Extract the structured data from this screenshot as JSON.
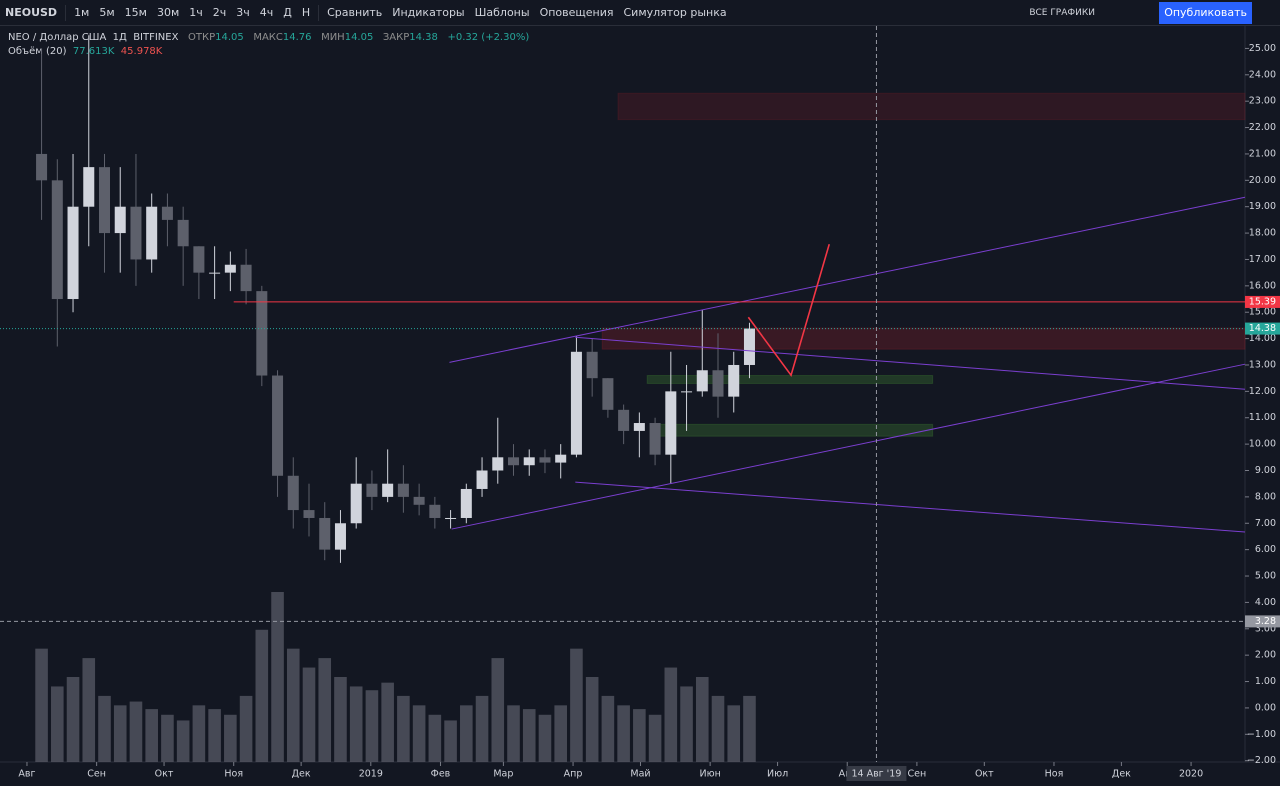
{
  "toolbar": {
    "symbol": "NEOUSD",
    "intervals": [
      "1м",
      "5м",
      "15м",
      "30м",
      "1ч",
      "2ч",
      "3ч",
      "4ч",
      "Д",
      "Н"
    ],
    "buttons": [
      "Сравнить",
      "Индикаторы",
      "Шаблоны",
      "Оповещения",
      "Симулятор рынка"
    ],
    "layouts": "ВСЕ ГРАФИКИ",
    "publish": "Опубликовать"
  },
  "legend": {
    "name": "NEO / Доллар США",
    "interval": "1Д",
    "exchange": "BITFINEX",
    "open_label": "ОТКР",
    "open": "14.05",
    "high_label": "МАКС",
    "high": "14.76",
    "low_label": "МИН",
    "low": "14.05",
    "close_label": "ЗАКР",
    "close": "14.38",
    "change": "+0.32 (+2.30%)",
    "volume_name": "Объём (20)",
    "volume": "77.613K",
    "volume_ma": "45.978K"
  },
  "chart_data": {
    "type": "candlestick",
    "up_color": "#d1d4dc",
    "down_color": "#5d606b",
    "volume_color": "#5d606b",
    "x": [
      "2018-08-04",
      "2018-08-11",
      "2018-08-18",
      "2018-08-25",
      "2018-09-01",
      "2018-09-08",
      "2018-09-15",
      "2018-09-22",
      "2018-09-29",
      "2018-10-06",
      "2018-10-13",
      "2018-10-20",
      "2018-10-27",
      "2018-11-03",
      "2018-11-10",
      "2018-11-17",
      "2018-11-24",
      "2018-12-01",
      "2018-12-08",
      "2018-12-15",
      "2018-12-22",
      "2018-12-29",
      "2019-01-05",
      "2019-01-12",
      "2019-01-19",
      "2019-01-26",
      "2019-02-02",
      "2019-02-09",
      "2019-02-16",
      "2019-02-23",
      "2019-03-02",
      "2019-03-09",
      "2019-03-16",
      "2019-03-23",
      "2019-03-30",
      "2019-04-06",
      "2019-04-13",
      "2019-04-20",
      "2019-04-27",
      "2019-05-04",
      "2019-05-11",
      "2019-05-18",
      "2019-05-25",
      "2019-06-01",
      "2019-06-08",
      "2019-06-15"
    ],
    "open": [
      21,
      20,
      15.5,
      19,
      20.5,
      18,
      19,
      17,
      19,
      18.5,
      17.5,
      16.5,
      16.5,
      16.8,
      15.8,
      12.6,
      8.8,
      7.5,
      7.2,
      6,
      7,
      8.5,
      8,
      8.5,
      8,
      7.7,
      7.2,
      7.2,
      8.3,
      9,
      9.5,
      9.2,
      9.5,
      9.3,
      9.6,
      13.5,
      12.5,
      11.3,
      10.5,
      10.8,
      9.6,
      12,
      12,
      12.8,
      11.8,
      13
    ],
    "high": [
      25,
      20.8,
      21,
      25.5,
      21,
      20.5,
      21,
      19.5,
      19.5,
      19,
      17.5,
      17.5,
      17.3,
      17.4,
      16,
      12.8,
      9.5,
      8.5,
      7.8,
      7.5,
      9.5,
      9,
      9.8,
      9.2,
      8.5,
      8,
      7.5,
      8.5,
      9.5,
      11,
      10,
      9.8,
      9.8,
      10,
      14.1,
      14,
      12.5,
      11.5,
      11.2,
      11,
      13.5,
      13,
      15.1,
      14.2,
      13.5,
      14.6
    ],
    "low": [
      18.5,
      13.7,
      15,
      17.5,
      16.5,
      16.5,
      16,
      16.5,
      17.5,
      16,
      15.5,
      15.5,
      15.8,
      15.3,
      12.2,
      8,
      6.8,
      6.5,
      5.6,
      5.5,
      6.8,
      7.5,
      7.8,
      7.4,
      7.3,
      6.8,
      6.8,
      7,
      8,
      8.5,
      8.8,
      8.8,
      8.9,
      8.7,
      9.5,
      11.8,
      11,
      10,
      9.5,
      9.2,
      8.5,
      10.5,
      11.8,
      11,
      11.2,
      12.5
    ],
    "close": [
      20,
      15.5,
      19,
      20.5,
      18,
      19,
      17,
      19,
      18.5,
      17.5,
      16.5,
      16.5,
      16.8,
      15.8,
      12.6,
      8.8,
      7.5,
      7.2,
      6,
      7,
      8.5,
      8,
      8.5,
      8,
      7.7,
      7.2,
      7.2,
      8.3,
      9,
      9.5,
      9.2,
      9.5,
      9.3,
      9.6,
      13.5,
      12.5,
      11.3,
      10.5,
      10.8,
      9.6,
      12,
      12,
      12.8,
      11.8,
      13,
      14.38
    ],
    "volume": [
      60,
      40,
      45,
      55,
      35,
      30,
      32,
      28,
      25,
      22,
      30,
      28,
      25,
      35,
      70,
      90,
      60,
      50,
      55,
      45,
      40,
      38,
      42,
      35,
      30,
      25,
      22,
      30,
      35,
      55,
      30,
      28,
      25,
      30,
      60,
      45,
      35,
      30,
      28,
      25,
      50,
      40,
      45,
      35,
      30,
      35
    ],
    "xlim": [
      "2018-07-20",
      "2020-01-25"
    ],
    "xticks": [
      {
        "value": "2018-08-01",
        "label": "Авг"
      },
      {
        "value": "2018-09-01",
        "label": "Сен"
      },
      {
        "value": "2018-10-01",
        "label": "Окт"
      },
      {
        "value": "2018-11-01",
        "label": "Ноя"
      },
      {
        "value": "2018-12-01",
        "label": "Дек"
      },
      {
        "value": "2019-01-01",
        "label": "2019"
      },
      {
        "value": "2019-02-01",
        "label": "Фев"
      },
      {
        "value": "2019-03-01",
        "label": "Мар"
      },
      {
        "value": "2019-04-01",
        "label": "Апр"
      },
      {
        "value": "2019-05-01",
        "label": "Май"
      },
      {
        "value": "2019-06-01",
        "label": "Июн"
      },
      {
        "value": "2019-07-01",
        "label": "Июл"
      },
      {
        "value": "2019-08-01",
        "label": "Авг"
      },
      {
        "value": "2019-09-01",
        "label": "Сен"
      },
      {
        "value": "2019-10-01",
        "label": "Окт"
      },
      {
        "value": "2019-11-01",
        "label": "Ноя"
      },
      {
        "value": "2019-12-01",
        "label": "Дек"
      },
      {
        "value": "2020-01-01",
        "label": "2020"
      }
    ],
    "ylim": [
      -2.05,
      25.85
    ],
    "yticks": [
      {
        "value": 25,
        "label": "25.00"
      },
      {
        "value": 24,
        "label": "24.00"
      },
      {
        "value": 23,
        "label": "23.00"
      },
      {
        "value": 22,
        "label": "22.00"
      },
      {
        "value": 21,
        "label": "21.00"
      },
      {
        "value": 20,
        "label": "20.00"
      },
      {
        "value": 19,
        "label": "19.00"
      },
      {
        "value": 18,
        "label": "18.00"
      },
      {
        "value": 17,
        "label": "17.00"
      },
      {
        "value": 16,
        "label": "16.00"
      },
      {
        "value": 15,
        "label": "15.00"
      },
      {
        "value": 14,
        "label": "14.00"
      },
      {
        "value": 13,
        "label": "13.00"
      },
      {
        "value": 12,
        "label": "12.00"
      },
      {
        "value": 11,
        "label": "11.00"
      },
      {
        "value": 10,
        "label": "10.00"
      },
      {
        "value": 9,
        "label": "9.00"
      },
      {
        "value": 8,
        "label": "8.00"
      },
      {
        "value": 7,
        "label": "7.00"
      },
      {
        "value": 6,
        "label": "6.00"
      },
      {
        "value": 5,
        "label": "5.00"
      },
      {
        "value": 4,
        "label": "4.00"
      },
      {
        "value": 3,
        "label": "3.00"
      },
      {
        "value": 2,
        "label": "2.00"
      },
      {
        "value": 1,
        "label": "1.00"
      },
      {
        "value": 0,
        "label": "0.00"
      },
      {
        "value": -1,
        "label": "−1.00"
      },
      {
        "value": -2,
        "label": "−2.00"
      }
    ],
    "price_lines": [
      {
        "value": 15.39,
        "from": "2018-11-01",
        "color": "#f23645",
        "style": "solid"
      },
      {
        "value": 14.38,
        "from": "2018-07-20",
        "color": "#26a69a",
        "style": "dotted"
      },
      {
        "value": 3.28,
        "from": "2018-07-20",
        "color": "#9598a1",
        "style": "dashed"
      }
    ],
    "zones": [
      {
        "from": "2019-04-21",
        "to": "2020-01-25",
        "low": 22.3,
        "high": 23.3,
        "color": "rgba(120,30,40,0.28)"
      },
      {
        "from": "2019-04-14",
        "to": "2020-01-25",
        "low": 13.6,
        "high": 14.4,
        "color": "rgba(120,30,40,0.38)"
      },
      {
        "from": "2019-05-04",
        "to": "2019-09-08",
        "low": 12.3,
        "high": 12.6,
        "color": "rgba(60,120,50,0.35)"
      },
      {
        "from": "2019-05-09",
        "to": "2019-09-08",
        "low": 10.3,
        "high": 10.75,
        "color": "rgba(60,120,50,0.35)"
      }
    ],
    "trend_lines": [
      {
        "x": [
          "2019-02-05",
          "2020-01-25"
        ],
        "y": [
          13.1,
          19.36
        ],
        "color": "#7b3fd0"
      },
      {
        "x": [
          "2019-04-02",
          "2020-01-25"
        ],
        "y": [
          14.05,
          12.08
        ],
        "color": "#7b3fd0"
      },
      {
        "x": [
          "2019-02-06",
          "2020-01-25"
        ],
        "y": [
          6.78,
          13.03
        ],
        "color": "#7b3fd0"
      },
      {
        "x": [
          "2019-04-02",
          "2020-01-25"
        ],
        "y": [
          8.56,
          6.67
        ],
        "color": "#7b3fd0"
      },
      {
        "x": [
          "2019-06-18",
          "2019-07-07",
          "2019-07-24"
        ],
        "y": [
          14.81,
          12.61,
          17.58
        ],
        "color": "#f23645"
      }
    ],
    "crosshair": {
      "x": {
        "value": "2019-08-14",
        "label": "14 Авг '19"
      },
      "y": 3.28
    }
  }
}
